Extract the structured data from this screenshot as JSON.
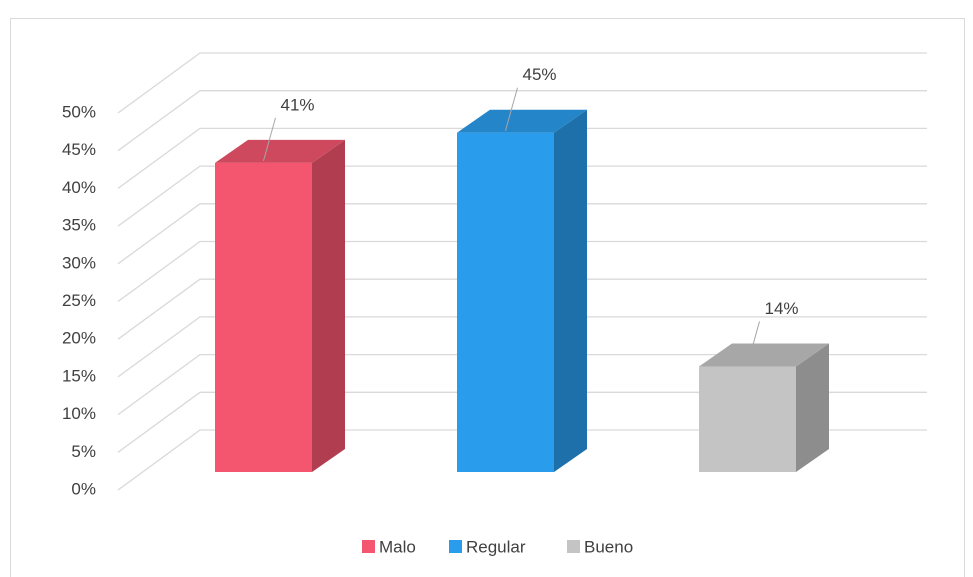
{
  "chart_data": {
    "type": "bar3d",
    "categories": [
      "Malo",
      "Regular",
      "Bueno"
    ],
    "values": [
      41,
      45,
      14
    ],
    "value_labels": [
      "41%",
      "45%",
      "14%"
    ],
    "colors": [
      "#f4566f",
      "#2a9cec",
      "#c4c4c4"
    ],
    "ylim": [
      0,
      50
    ],
    "yticks": [
      {
        "value": 0,
        "label": "0%"
      },
      {
        "value": 5,
        "label": "5%"
      },
      {
        "value": 10,
        "label": "10%"
      },
      {
        "value": 15,
        "label": "15%"
      },
      {
        "value": 20,
        "label": "20%"
      },
      {
        "value": 25,
        "label": "25%"
      },
      {
        "value": 30,
        "label": "30%"
      },
      {
        "value": 35,
        "label": "35%"
      },
      {
        "value": 40,
        "label": "40%"
      },
      {
        "value": 45,
        "label": "45%"
      },
      {
        "value": 50,
        "label": "50%"
      }
    ],
    "grid": true,
    "legend": "bottom"
  }
}
